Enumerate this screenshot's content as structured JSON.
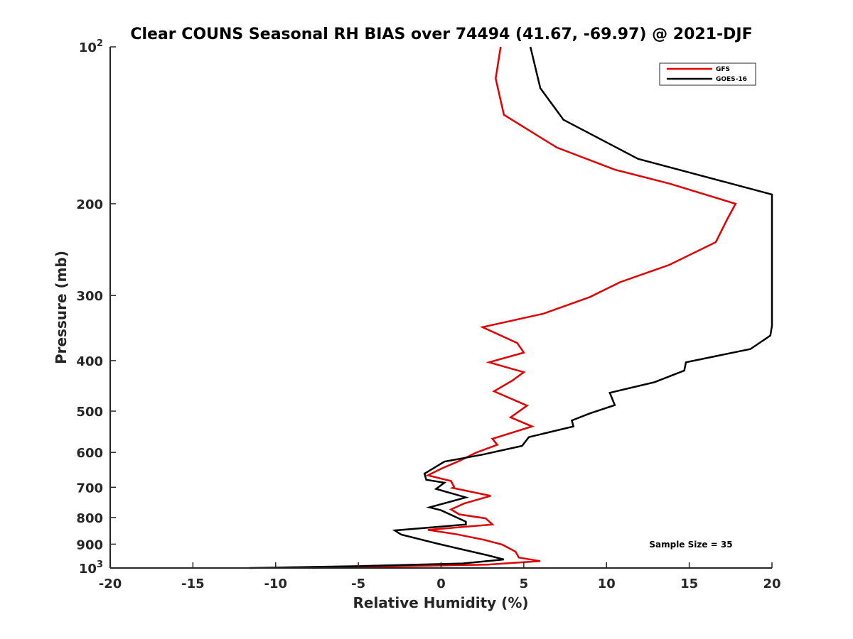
{
  "chart_data": {
    "type": "line",
    "title": "Clear COUNS Seasonal RH BIAS over 74494 (41.67, -69.97) @ 2021-DJF",
    "xlabel": "Relative Humidity (%)",
    "ylabel": "Pressure (mb)",
    "xlim": [
      -20,
      20
    ],
    "ylim": [
      100,
      1000
    ],
    "y_scale": "log",
    "y_reversed": true,
    "grid": false,
    "legend_position": "top-right",
    "x_ticks": [
      -20,
      -15,
      -10,
      -5,
      0,
      5,
      10,
      15,
      20
    ],
    "x_tick_labels": [
      "-20",
      "-15",
      "-10",
      "-5",
      "0",
      "5",
      "10",
      "15",
      "20"
    ],
    "y_ticks": [
      100,
      200,
      300,
      400,
      500,
      600,
      700,
      800,
      900,
      1000
    ],
    "y_tick_labels": [
      {
        "base": "10",
        "exp": "2"
      },
      {
        "base": "200",
        "exp": ""
      },
      {
        "base": "300",
        "exp": ""
      },
      {
        "base": "400",
        "exp": ""
      },
      {
        "base": "500",
        "exp": ""
      },
      {
        "base": "600",
        "exp": ""
      },
      {
        "base": "700",
        "exp": ""
      },
      {
        "base": "800",
        "exp": ""
      },
      {
        "base": "900",
        "exp": ""
      },
      {
        "base": "10",
        "exp": "3"
      }
    ],
    "series": [
      {
        "name": "GFS",
        "color": "#e00000",
        "points": [
          [
            3.6,
            100
          ],
          [
            3.3,
            115
          ],
          [
            3.8,
            135
          ],
          [
            7.0,
            156
          ],
          [
            10.5,
            172
          ],
          [
            13.8,
            183
          ],
          [
            17.8,
            200
          ],
          [
            17.3,
            214
          ],
          [
            16.6,
            237
          ],
          [
            13.8,
            262
          ],
          [
            10.8,
            283
          ],
          [
            9.0,
            302
          ],
          [
            6.2,
            325
          ],
          [
            2.5,
            345
          ],
          [
            4.6,
            370
          ],
          [
            5.0,
            386
          ],
          [
            2.9,
            403
          ],
          [
            5.0,
            421
          ],
          [
            4.3,
            437
          ],
          [
            3.2,
            458
          ],
          [
            5.2,
            488
          ],
          [
            4.2,
            514
          ],
          [
            5.5,
            535
          ],
          [
            3.1,
            565
          ],
          [
            3.4,
            580
          ],
          [
            2.1,
            601
          ],
          [
            1.1,
            623
          ],
          [
            0.0,
            645
          ],
          [
            -0.8,
            664
          ],
          [
            0.6,
            681
          ],
          [
            0.8,
            700
          ],
          [
            0.7,
            702
          ],
          [
            3.0,
            727
          ],
          [
            1.4,
            752
          ],
          [
            0.6,
            772
          ],
          [
            1.1,
            789
          ],
          [
            2.7,
            803
          ],
          [
            3.1,
            825
          ],
          [
            -0.8,
            845
          ],
          [
            0.9,
            861
          ],
          [
            2.6,
            883
          ],
          [
            3.7,
            902
          ],
          [
            4.5,
            930
          ],
          [
            4.7,
            955
          ],
          [
            6.0,
            970
          ],
          [
            2.8,
            985
          ],
          [
            -7.8,
            1000
          ]
        ]
      },
      {
        "name": "GOES-16",
        "color": "#000000",
        "points": [
          [
            5.4,
            100
          ],
          [
            6.0,
            120
          ],
          [
            7.4,
            138
          ],
          [
            11.9,
            164
          ],
          [
            20.0,
            192
          ],
          [
            20.0,
            343
          ],
          [
            19.9,
            358
          ],
          [
            18.7,
            380
          ],
          [
            14.8,
            403
          ],
          [
            14.7,
            418
          ],
          [
            12.9,
            440
          ],
          [
            10.2,
            461
          ],
          [
            10.5,
            487
          ],
          [
            9.0,
            505
          ],
          [
            7.9,
            521
          ],
          [
            8.0,
            535
          ],
          [
            5.3,
            561
          ],
          [
            4.9,
            583
          ],
          [
            2.5,
            606
          ],
          [
            0.2,
            625
          ],
          [
            -1.0,
            659
          ],
          [
            -0.9,
            677
          ],
          [
            0.2,
            686
          ],
          [
            -0.3,
            705
          ],
          [
            1.5,
            732
          ],
          [
            -0.7,
            765
          ],
          [
            0.0,
            775
          ],
          [
            1.5,
            815
          ],
          [
            1.5,
            825
          ],
          [
            -2.8,
            847
          ],
          [
            -2.4,
            863
          ],
          [
            -0.1,
            900
          ],
          [
            2.8,
            945
          ],
          [
            3.8,
            963
          ],
          [
            1.3,
            980
          ],
          [
            -5.0,
            992
          ],
          [
            -11.6,
            1000
          ]
        ]
      }
    ],
    "annotations": [
      "Sample Size = 35"
    ]
  }
}
